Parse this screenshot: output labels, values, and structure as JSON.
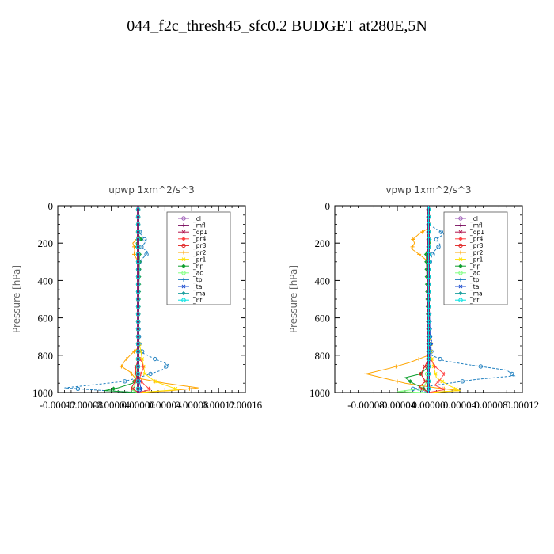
{
  "figure": {
    "title": "044_f2c_thresh45_sfc0.2  BUDGET at280E,5N"
  },
  "legend_entries": [
    "_cl",
    "_mfl",
    "_dp1",
    "_pr4",
    "_pr3",
    "_pr2",
    "_pr1",
    "_bp",
    "_ac",
    "_tp",
    "_ta",
    "_ma",
    "_bt"
  ],
  "colors": {
    "_cl": "#9b59b6",
    "_mfl": "#7b1060",
    "_dp1": "#b0104a",
    "_pr4": "#ff4040",
    "_pr3": "#e02020",
    "_pr2": "#ffa500",
    "_pr1": "#ffe000",
    "_bp": "#10a030",
    "_ac": "#80ff80",
    "_tp": "#2080c0",
    "_ta": "#2050d0",
    "_ma": "#20a0a0",
    "_bt": "#00e0e0"
  },
  "chart_data": [
    {
      "type": "line",
      "title": "upwp   1xm^2/s^3",
      "ylabel": "Pressure [hPa]",
      "xlabel": "",
      "xlim": [
        -0.00012,
        0.00016
      ],
      "ylim": [
        1000,
        0
      ],
      "y_inverted": true,
      "xticks": [
        -0.00012,
        -8e-05,
        -4e-05,
        0.0,
        4e-05,
        8e-05,
        0.00012,
        0.00016
      ],
      "xtick_labels": [
        "-0.00012",
        "-0.00008",
        "-0.00004",
        "0.00000",
        "0.00004",
        "0.00008",
        "0.00012",
        "0.00016"
      ],
      "yticks": [
        0,
        200,
        400,
        600,
        800,
        1000
      ],
      "ytick_labels": [
        "0",
        "200",
        "400",
        "600",
        "800",
        "1000"
      ],
      "legend_position": "top-right",
      "series": [
        {
          "name": "_tp",
          "y": [
            0,
            120,
            160,
            190,
            220,
            250,
            300,
            400,
            600,
            760,
            790,
            820,
            850,
            880,
            910,
            940,
            960,
            975,
            990,
            1000
          ],
          "x": [
            0,
            0,
            5e-06,
            1.2e-05,
            5e-06,
            1.5e-05,
            2e-06,
            0,
            0,
            2e-06,
            8e-06,
            2.5e-05,
            4.5e-05,
            3.5e-05,
            1e-05,
            -2e-05,
            -7e-05,
            -0.00011,
            -5e-05,
            0
          ]
        },
        {
          "name": "_pr2",
          "y": [
            0,
            120,
            180,
            200,
            230,
            260,
            300,
            400,
            600,
            760,
            800,
            830,
            860,
            890,
            920,
            950,
            975,
            990,
            1000
          ],
          "x": [
            0,
            0,
            -2e-06,
            -8e-06,
            -5e-06,
            -6e-06,
            0,
            0,
            0,
            0,
            -1.2e-05,
            -2e-05,
            -2.5e-05,
            -1.2e-05,
            -5e-06,
            4e-05,
            9e-05,
            5e-05,
            0
          ]
        },
        {
          "name": "_pr1",
          "y": [
            0,
            700,
            900,
            940,
            960,
            985,
            1000
          ],
          "x": [
            0,
            0,
            1e-05,
            2.5e-05,
            4e-05,
            6e-05,
            0
          ]
        },
        {
          "name": "_bp",
          "y": [
            0,
            150,
            180,
            200,
            260,
            700,
            880,
            920,
            950,
            975,
            990,
            1000
          ],
          "x": [
            0,
            0,
            4e-06,
            -3e-06,
            2e-06,
            0,
            0,
            -2e-06,
            -8e-06,
            -3e-05,
            -5e-05,
            0
          ]
        },
        {
          "name": "_ac",
          "y": [
            0,
            800,
            950,
            990,
            1000
          ],
          "x": [
            0,
            0,
            -4e-06,
            -8e-06,
            0
          ]
        },
        {
          "name": "_pr4",
          "y": [
            0,
            800,
            840,
            870,
            900,
            930,
            960,
            985,
            1000
          ],
          "x": [
            0,
            0,
            6e-06,
            8e-06,
            4e-06,
            2e-06,
            1e-05,
            1.8e-05,
            0
          ]
        },
        {
          "name": "_pr3",
          "y": [
            0,
            820,
            860,
            880,
            920,
            950,
            975,
            1000
          ],
          "x": [
            0,
            0,
            -3e-06,
            -4e-06,
            -2e-06,
            -6e-06,
            -1e-05,
            0
          ]
        },
        {
          "name": "_ta",
          "y": [
            0,
            900,
            960,
            990,
            1000
          ],
          "x": [
            0,
            0,
            3e-06,
            5e-06,
            0
          ]
        },
        {
          "name": "_ma",
          "y": [
            0,
            1000
          ],
          "x": [
            0,
            0
          ]
        },
        {
          "name": "_cl",
          "y": [
            0,
            1000
          ],
          "x": [
            0,
            0
          ]
        },
        {
          "name": "_dp1",
          "y": [
            0,
            1000
          ],
          "x": [
            0,
            0
          ]
        },
        {
          "name": "_mfl",
          "y": [
            0,
            1000
          ],
          "x": [
            0,
            0
          ]
        },
        {
          "name": "_bt",
          "y": [
            0,
            1000
          ],
          "x": [
            0,
            0
          ]
        }
      ]
    },
    {
      "type": "line",
      "title": "vpwp   1xm^2/s^3",
      "ylabel": "Pressure [hPa]",
      "xlabel": "",
      "xlim": [
        -0.00012,
        0.00012
      ],
      "ylim": [
        1000,
        0
      ],
      "y_inverted": true,
      "xticks": [
        -8e-05,
        -4e-05,
        0.0,
        4e-05,
        8e-05,
        0.00012
      ],
      "xtick_labels": [
        "-0.00008",
        "-0.00004",
        "0.00000",
        "0.00004",
        "0.00008",
        "0.00012"
      ],
      "yticks": [
        0,
        200,
        400,
        600,
        800,
        1000
      ],
      "ytick_labels": [
        "0",
        "200",
        "400",
        "600",
        "800",
        "1000"
      ],
      "legend_position": "top-right",
      "series": [
        {
          "name": "_tp",
          "y": [
            0,
            100,
            130,
            150,
            180,
            210,
            240,
            280,
            330,
            600,
            700,
            800,
            830,
            850,
            880,
            910,
            930,
            960,
            980,
            1000
          ],
          "x": [
            0,
            0,
            1.2e-05,
            2e-05,
            1e-05,
            1.5e-05,
            8e-06,
            3e-06,
            0,
            0,
            2e-06,
            4e-06,
            2e-05,
            5e-05,
            0.0001,
            0.00011,
            6e-05,
            1e-05,
            -2e-05,
            0
          ]
        },
        {
          "name": "_pr2",
          "y": [
            0,
            120,
            150,
            180,
            200,
            230,
            260,
            300,
            600,
            800,
            840,
            870,
            900,
            920,
            950,
            975,
            990,
            1000
          ],
          "x": [
            0,
            0,
            -1.2e-05,
            -2e-05,
            -1.8e-05,
            -2.2e-05,
            -1.2e-05,
            0,
            0,
            0,
            -2.5e-05,
            -5e-05,
            -8e-05,
            -6e-05,
            -3e-05,
            1e-05,
            4e-05,
            0
          ]
        },
        {
          "name": "_pr1",
          "y": [
            0,
            700,
            720,
            800,
            920,
            960,
            990,
            1000
          ],
          "x": [
            0,
            0,
            3e-06,
            3e-06,
            1e-05,
            2.5e-05,
            4e-05,
            0
          ]
        },
        {
          "name": "_bp",
          "y": [
            0,
            150,
            200,
            250,
            700,
            860,
            900,
            920,
            950,
            975,
            1000
          ],
          "x": [
            0,
            0,
            2e-06,
            -3e-06,
            0,
            0,
            -1e-05,
            -3e-05,
            -2e-05,
            -8e-06,
            0
          ]
        },
        {
          "name": "_ac",
          "y": [
            0,
            800,
            950,
            980,
            995,
            1000
          ],
          "x": [
            0,
            0,
            -3e-06,
            -1e-05,
            -4e-05,
            0
          ]
        },
        {
          "name": "_pr4",
          "y": [
            0,
            800,
            860,
            900,
            930,
            960,
            985,
            1000
          ],
          "x": [
            0,
            0,
            8e-06,
            2e-05,
            1.5e-05,
            8e-06,
            2e-05,
            0
          ]
        },
        {
          "name": "_pr3",
          "y": [
            0,
            820,
            870,
            900,
            940,
            970,
            1000
          ],
          "x": [
            0,
            0,
            -6e-06,
            -1e-05,
            -4e-06,
            -1.2e-05,
            0
          ]
        },
        {
          "name": "_ta",
          "y": [
            0,
            400,
            700,
            720,
            760,
            1000
          ],
          "x": [
            0,
            0,
            2e-06,
            4e-06,
            2e-06,
            0
          ]
        },
        {
          "name": "_ma",
          "y": [
            0,
            1000
          ],
          "x": [
            0,
            0
          ]
        },
        {
          "name": "_cl",
          "y": [
            0,
            1000
          ],
          "x": [
            0,
            0
          ]
        },
        {
          "name": "_dp1",
          "y": [
            0,
            1000
          ],
          "x": [
            0,
            0
          ]
        },
        {
          "name": "_mfl",
          "y": [
            0,
            1000
          ],
          "x": [
            0,
            0
          ]
        },
        {
          "name": "_bt",
          "y": [
            0,
            1000
          ],
          "x": [
            0,
            0
          ]
        }
      ]
    }
  ]
}
